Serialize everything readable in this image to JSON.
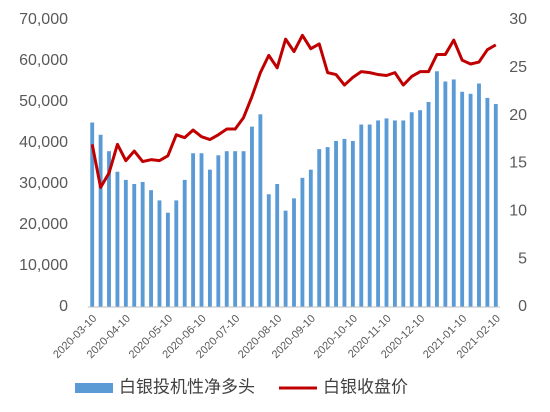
{
  "chart_data": {
    "type": "combo",
    "categories": [
      "2020-03-10",
      null,
      null,
      null,
      "2020-04-10",
      null,
      null,
      null,
      null,
      "2020-05-10",
      null,
      null,
      null,
      "2020-06-10",
      null,
      null,
      null,
      "2020-07-10",
      null,
      null,
      null,
      null,
      "2020-08-10",
      null,
      null,
      null,
      "2020-09-10",
      null,
      null,
      null,
      null,
      "2020-10-10",
      null,
      null,
      null,
      "2020-11-10",
      null,
      null,
      null,
      "2020-12-10",
      null,
      null,
      null,
      null,
      "2021-01-10",
      null,
      null,
      null,
      "2021-02-10"
    ],
    "series": [
      {
        "name": "白银投机性净多头",
        "type": "bar",
        "color": "#5b9bd5",
        "values": [
          45000,
          42000,
          38000,
          33000,
          31000,
          30000,
          30500,
          28500,
          26000,
          23000,
          26000,
          31000,
          37500,
          37500,
          33500,
          37000,
          38000,
          38000,
          38000,
          44000,
          47000,
          27500,
          30000,
          23500,
          26500,
          31500,
          33500,
          38500,
          39000,
          40500,
          41000,
          40500,
          44500,
          44500,
          45500,
          46000,
          45500,
          45500,
          47500,
          48000,
          50000,
          57500,
          55000,
          55500,
          52500,
          52000,
          54500,
          51000,
          49500
        ]
      },
      {
        "name": "白银收盘价",
        "type": "line",
        "color": "#c00000",
        "axis": "y2",
        "values": [
          17,
          12.5,
          14,
          17,
          15.3,
          16.3,
          15.2,
          15.4,
          15.3,
          15.8,
          18,
          17.7,
          18.5,
          17.8,
          17.5,
          18,
          18.6,
          18.6,
          19.8,
          22,
          24.5,
          26.3,
          25,
          28,
          26.7,
          28.4,
          27,
          27.5,
          24.5,
          24.3,
          23.2,
          24,
          24.6,
          24.5,
          24.3,
          24.2,
          24.5,
          23.2,
          24.1,
          24.6,
          24.6,
          26.4,
          26.4,
          27.9,
          25.8,
          25.4,
          25.6,
          26.9,
          27.4
        ]
      }
    ],
    "ylim": [
      0,
      70000
    ],
    "yticks": [
      0,
      {
        "value": 10000,
        "label": "10,000"
      },
      {
        "value": 20000,
        "label": "20,000"
      },
      {
        "value": 30000,
        "label": "30,000"
      },
      {
        "value": 40000,
        "label": "40,000"
      },
      {
        "value": 50000,
        "label": "50,000"
      },
      {
        "value": 60000,
        "label": "60,000"
      },
      {
        "value": 70000,
        "label": "70,000"
      }
    ],
    "y2lim": [
      0,
      30
    ],
    "y2ticks": [
      0,
      5,
      10,
      15,
      20,
      25,
      30
    ],
    "legend": "bottom"
  }
}
